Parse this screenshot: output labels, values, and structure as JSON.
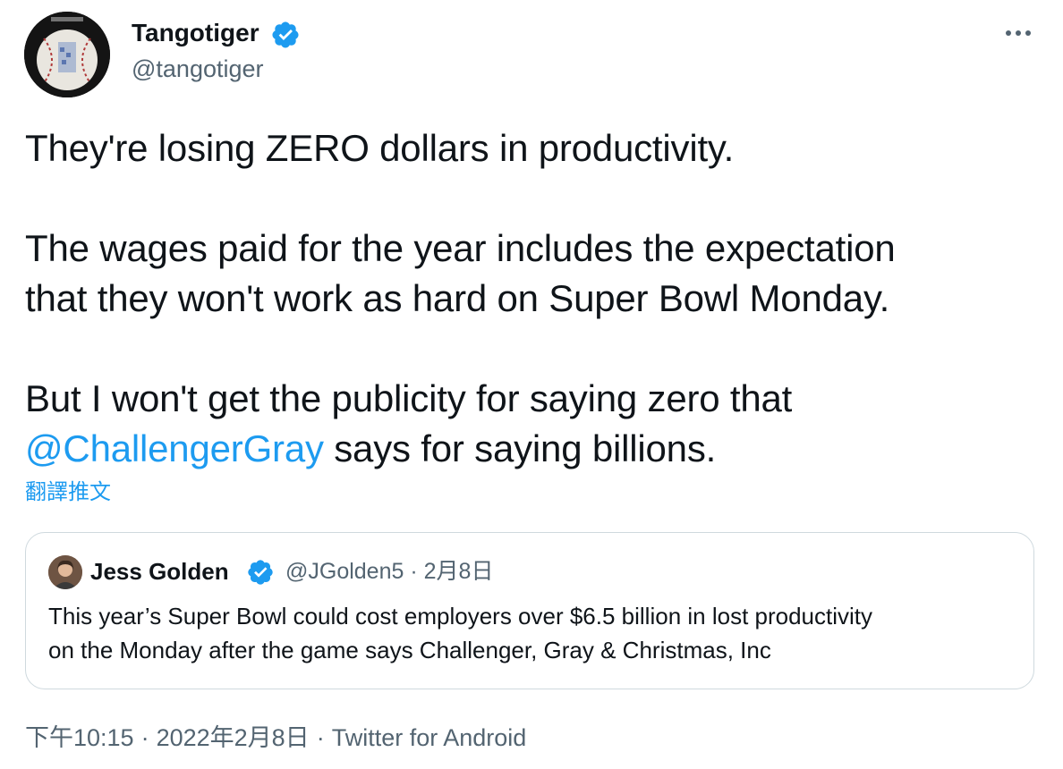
{
  "author": {
    "name": "Tangotiger",
    "handle": "@tangotiger",
    "verified": true,
    "avatar_icon": "baseball-avatar-icon"
  },
  "menu": {
    "more_icon": "more-horizontal-icon"
  },
  "tweet": {
    "line1": "They're losing ZERO dollars in productivity.",
    "line2": "The wages paid for the year includes the expectation",
    "line3": "that they won't work as hard on Super Bowl Monday.",
    "line4": "But I won't get the publicity for saying zero that",
    "mention": "@ChallengerGray",
    "line5_rest": " says for saying billions.",
    "translate_label": "翻譯推文"
  },
  "quote": {
    "name": "Jess Golden",
    "verified": true,
    "handle": "@JGolden5",
    "separator": "·",
    "date": "2月8日",
    "text_line1": "This year’s Super Bowl could cost employers over $6.5 billion in lost productivity",
    "text_line2": "on the Monday after the game says Challenger, Gray & Christmas, Inc"
  },
  "footer": {
    "time": "下午10:15",
    "separator": "·",
    "date": "2022年2月8日",
    "source": "Twitter for Android"
  },
  "colors": {
    "link": "#1d9bf0",
    "text": "#0f1419",
    "secondary": "#536471",
    "border": "#cfd9de"
  }
}
